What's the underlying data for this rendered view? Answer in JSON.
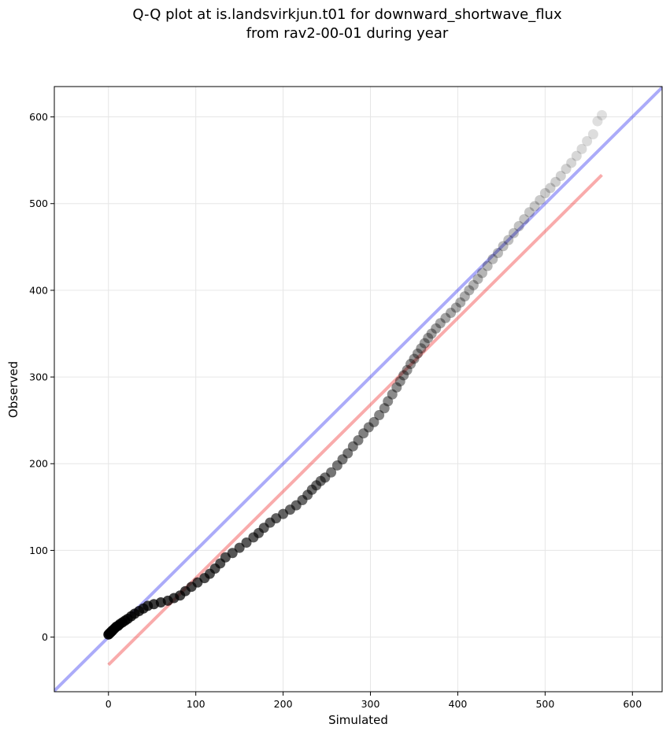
{
  "chart_data": {
    "type": "scatter",
    "title_lines": [
      "Q-Q plot at is.landsvirkjun.t01 for downward_shortwave_flux",
      "from rav2-00-01 during year"
    ],
    "xlabel": "Simulated",
    "ylabel": "Observed",
    "xlim": [
      -62,
      634
    ],
    "ylim": [
      -63,
      635
    ],
    "xticks": [
      0,
      100,
      200,
      300,
      400,
      500,
      600
    ],
    "yticks": [
      0,
      100,
      200,
      300,
      400,
      500,
      600
    ],
    "xtick_labels": [
      "0",
      "100",
      "200",
      "300",
      "400",
      "500",
      "600"
    ],
    "ytick_labels": [
      "0",
      "100",
      "200",
      "300",
      "400",
      "500",
      "600"
    ],
    "grid": true,
    "reference_lines": [
      {
        "kind": "one-to-one",
        "color": "#0000ee",
        "x": [
          -62,
          634
        ],
        "y": [
          -62,
          634
        ]
      },
      {
        "kind": "linear-fit",
        "color": "#ee0000",
        "x": [
          0,
          565
        ],
        "y": [
          -32,
          533
        ]
      }
    ],
    "series": [
      {
        "x": [
          0,
          1,
          2,
          3,
          4,
          5,
          7,
          9,
          11,
          13,
          16,
          19,
          22,
          26,
          30,
          35,
          40,
          45,
          52,
          60,
          68,
          75,
          82,
          88,
          95,
          102,
          110,
          116,
          122,
          128,
          134,
          142,
          150,
          158,
          166,
          172,
          178,
          185,
          192,
          200,
          208,
          215,
          222,
          228,
          233,
          238,
          243,
          248,
          255,
          262,
          268,
          274,
          280,
          286,
          292,
          298,
          304,
          310,
          316,
          320,
          325,
          330,
          334,
          338,
          342,
          346,
          350,
          354,
          358,
          362,
          366,
          370,
          375,
          380,
          386,
          392,
          398,
          403,
          408,
          413,
          418,
          423,
          428,
          434,
          440,
          446,
          452,
          458,
          464,
          470,
          476,
          482,
          488,
          494,
          500,
          506,
          512,
          518,
          524,
          530,
          536,
          542,
          548,
          555,
          560,
          565
        ],
        "y": [
          3,
          4,
          5,
          6,
          7,
          8,
          10,
          12,
          13,
          15,
          17,
          19,
          21,
          24,
          27,
          30,
          33,
          36,
          38,
          40,
          42,
          45,
          48,
          53,
          58,
          63,
          68,
          73,
          79,
          85,
          92,
          97,
          103,
          109,
          115,
          120,
          126,
          132,
          137,
          142,
          147,
          152,
          158,
          164,
          170,
          175,
          180,
          184,
          190,
          198,
          205,
          212,
          220,
          227,
          235,
          242,
          248,
          256,
          264,
          272,
          280,
          288,
          295,
          302,
          308,
          315,
          321,
          327,
          333,
          339,
          345,
          350,
          356,
          362,
          368,
          374,
          380,
          386,
          393,
          400,
          406,
          413,
          420,
          428,
          436,
          443,
          451,
          458,
          466,
          474,
          482,
          490,
          497,
          504,
          512,
          518,
          525,
          532,
          540,
          547,
          555,
          563,
          572,
          580,
          595,
          602
        ]
      }
    ]
  }
}
